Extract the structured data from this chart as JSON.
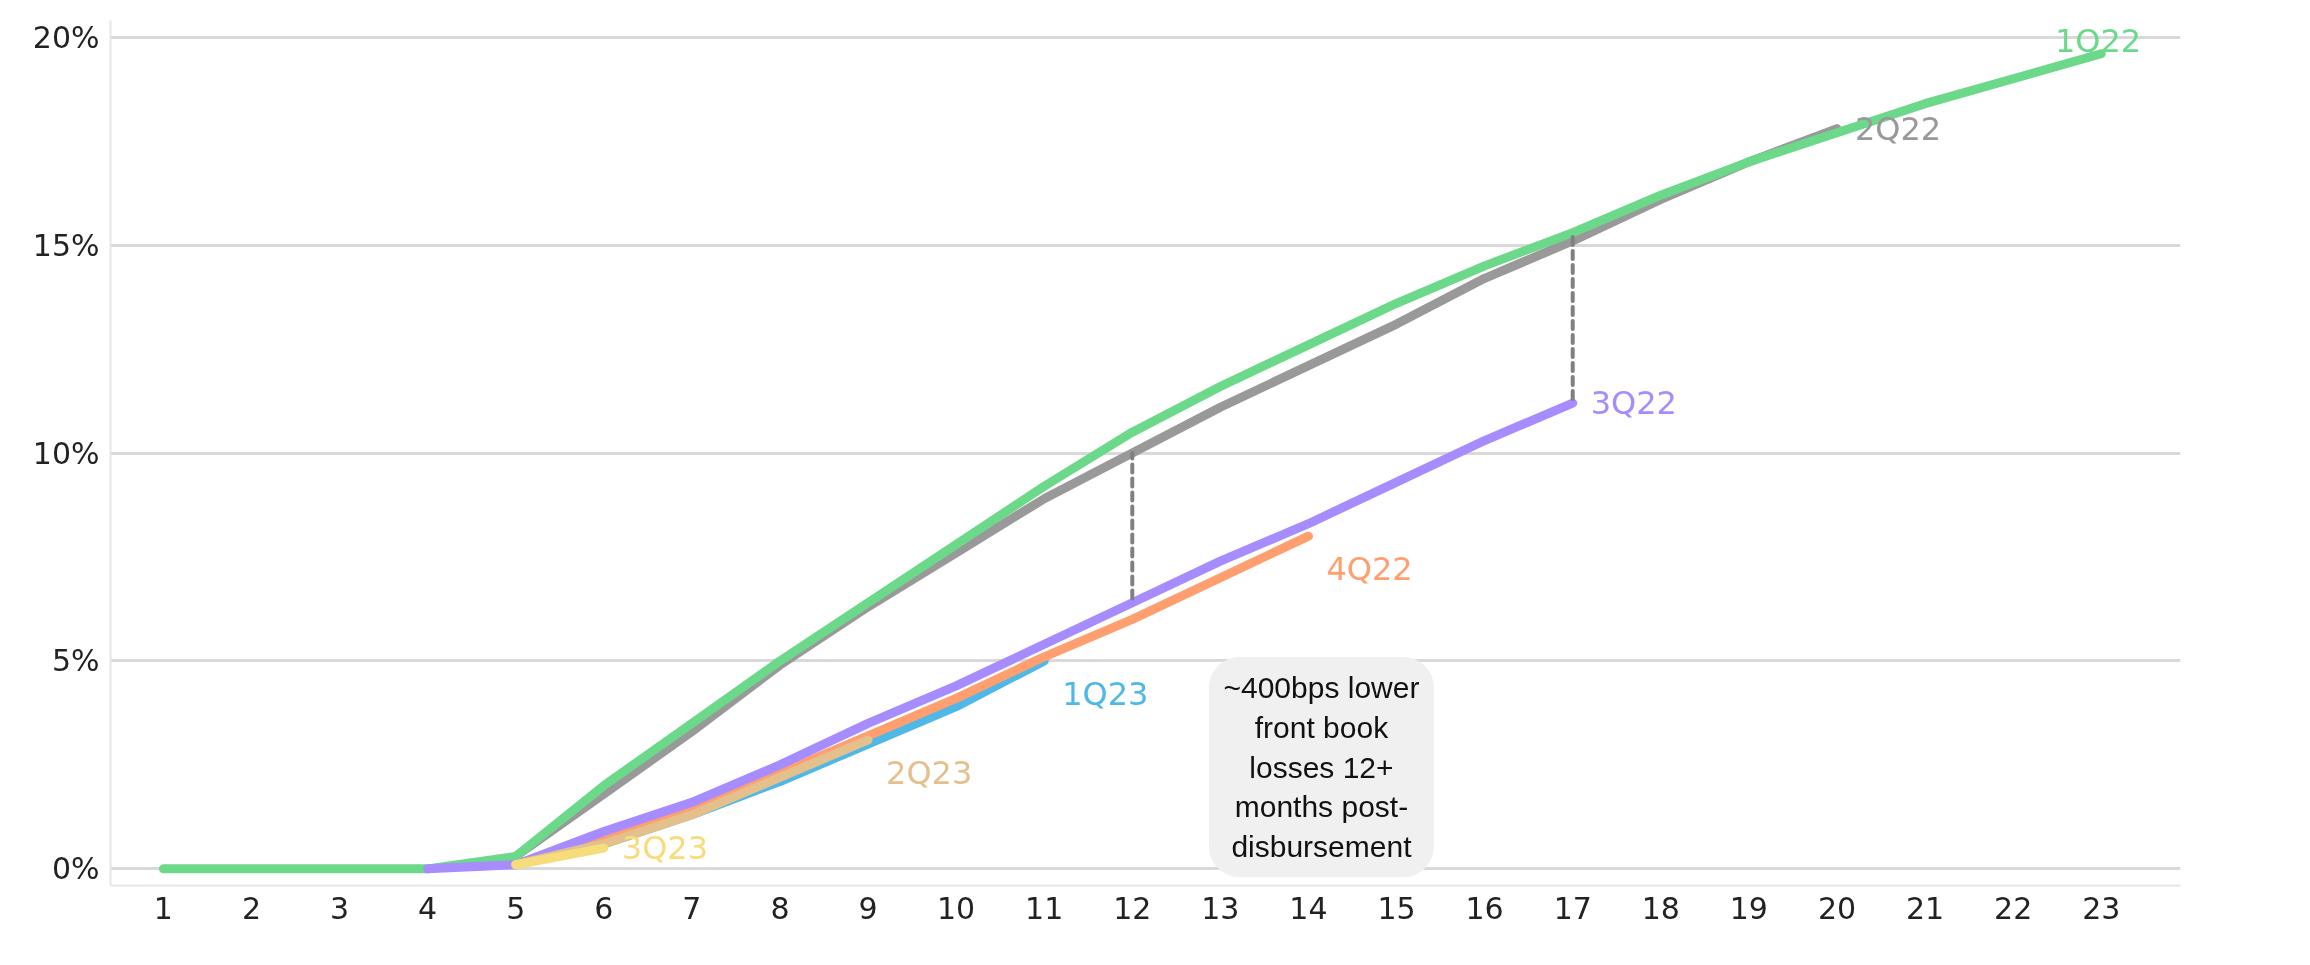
{
  "chart_data": {
    "type": "line",
    "xlim": [
      0.4,
      23.9
    ],
    "ylim": [
      -0.4,
      20.4
    ],
    "xticks": [
      1,
      2,
      3,
      4,
      5,
      6,
      7,
      8,
      9,
      10,
      11,
      12,
      13,
      14,
      15,
      16,
      17,
      18,
      19,
      20,
      21,
      22,
      23
    ],
    "yticks": [
      {
        "value": 0,
        "label": "0%"
      },
      {
        "value": 5,
        "label": "5%"
      },
      {
        "value": 10,
        "label": "10%"
      },
      {
        "value": 15,
        "label": "15%"
      },
      {
        "value": 20,
        "label": "20%"
      }
    ],
    "grid": "y",
    "legend": false,
    "marker": "none",
    "line_style": "solid",
    "annotations": [
      "~400bps lower front book losses 12+ months post-disbursement"
    ],
    "series": [
      {
        "name": "2Q22",
        "color": "#999999",
        "x": [
          5,
          6,
          7,
          8,
          9,
          10,
          11,
          12,
          13,
          14,
          15,
          16,
          17,
          18,
          19,
          20
        ],
        "values": [
          0.3,
          1.8,
          3.3,
          4.9,
          6.3,
          7.6,
          8.9,
          10.0,
          11.1,
          12.1,
          13.1,
          14.2,
          15.1,
          16.1,
          17.0,
          17.8
        ]
      },
      {
        "name": "1Q22",
        "color": "#6cd98a",
        "x": [
          1,
          2,
          3,
          4,
          5,
          6,
          7,
          8,
          9,
          10,
          11,
          12,
          13,
          14,
          15,
          16,
          17,
          18,
          19,
          20,
          21,
          22,
          23
        ],
        "values": [
          0,
          0,
          0,
          0,
          0.3,
          2.0,
          3.5,
          5.0,
          6.4,
          7.8,
          9.2,
          10.5,
          11.6,
          12.6,
          13.6,
          14.5,
          15.3,
          16.2,
          17.0,
          17.7,
          18.4,
          19.0,
          19.6
        ]
      },
      {
        "name": "1Q23",
        "color": "#4fb8e6",
        "x": [
          5,
          6,
          7,
          8,
          9,
          10,
          11
        ],
        "values": [
          0.1,
          0.6,
          1.3,
          2.1,
          3.0,
          3.9,
          5.0
        ]
      },
      {
        "name": "4Q22",
        "color": "#ff9f70",
        "x": [
          5,
          6,
          7,
          8,
          9,
          10,
          11,
          12,
          13,
          14
        ],
        "values": [
          0.1,
          0.7,
          1.4,
          2.3,
          3.2,
          4.1,
          5.1,
          6.0,
          7.0,
          8.0
        ]
      },
      {
        "name": "3Q22",
        "color": "#a68cff",
        "x": [
          4,
          5,
          6,
          7,
          8,
          9,
          10,
          11,
          12,
          13,
          14,
          15,
          16,
          17
        ],
        "values": [
          0,
          0.1,
          0.9,
          1.6,
          2.5,
          3.5,
          4.4,
          5.4,
          6.4,
          7.4,
          8.3,
          9.3,
          10.3,
          11.2
        ]
      },
      {
        "name": "2Q23",
        "color": "#e3c08c",
        "x": [
          5,
          6,
          7,
          8,
          9
        ],
        "values": [
          0.1,
          0.6,
          1.3,
          2.2,
          3.1
        ]
      },
      {
        "name": "3Q23",
        "color": "#f7dc7c",
        "x": [
          5,
          6
        ],
        "values": [
          0.1,
          0.5
        ]
      },
      {
        "type": "line",
        "color": "#808080",
        "line_style": "dashed",
        "x": [
          12,
          12
        ],
        "values": [
          6.5,
          10.0
        ]
      },
      {
        "type": "line",
        "color": "#808080",
        "line_style": "dashed",
        "x": [
          17,
          17
        ],
        "values": [
          11.3,
          15.2
        ]
      }
    ]
  }
}
